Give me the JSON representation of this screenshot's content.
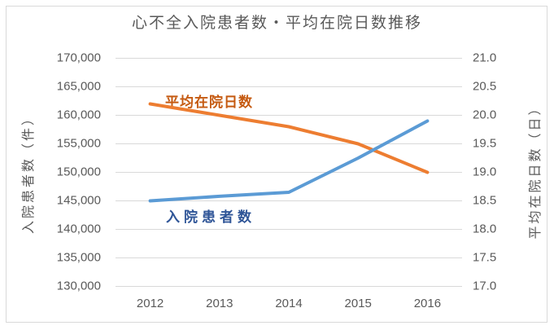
{
  "chart_data": {
    "type": "line",
    "title": "心不全入院患者数・平均在院日数推移",
    "ylabel_left": "入院患者数（件）",
    "ylabel_right": "平均在院日数（日）",
    "xlabel": "",
    "categories": [
      "2012",
      "2013",
      "2014",
      "2015",
      "2016"
    ],
    "series": [
      {
        "name": "入院患者数",
        "axis": "left",
        "values": [
          145000,
          145800,
          146500,
          152500,
          159000
        ],
        "line_color": "#5B9BD5",
        "label_color": "#2F5597"
      },
      {
        "name": "平均在院日数",
        "axis": "right",
        "values": [
          20.2,
          20.0,
          19.8,
          19.5,
          19.0
        ],
        "line_color": "#ED7D31",
        "label_color": "#C55A11"
      }
    ],
    "left_axis": {
      "min": 130000,
      "max": 170000,
      "step": 5000,
      "format": "thousands",
      "tick_labels": [
        "130,000",
        "135,000",
        "140,000",
        "145,000",
        "150,000",
        "155,000",
        "160,000",
        "165,000",
        "170,000"
      ]
    },
    "right_axis": {
      "min": 17.0,
      "max": 21.0,
      "step": 0.5,
      "format": "decimal1",
      "tick_labels": [
        "17.0",
        "17.5",
        "18.0",
        "18.5",
        "19.0",
        "19.5",
        "20.0",
        "20.5",
        "21.0"
      ]
    },
    "grid": "on",
    "grid_color": "#D9D9D9",
    "text_color": "#595959",
    "legend_position": "inline-labels"
  }
}
